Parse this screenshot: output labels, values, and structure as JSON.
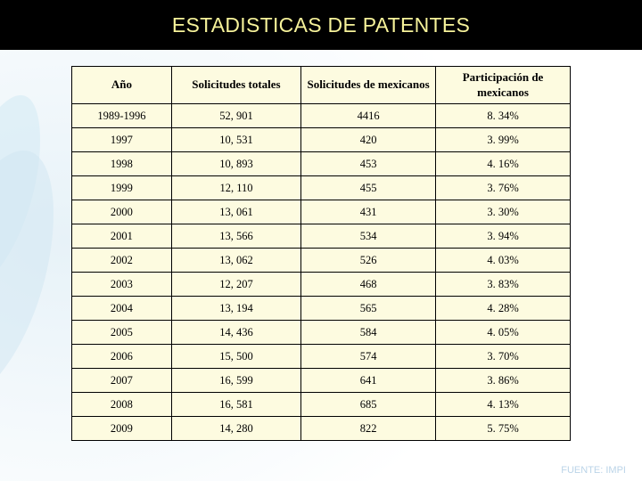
{
  "title": "ESTADISTICAS DE PATENTES",
  "footer": "FUENTE: IMPI",
  "table": {
    "columns": [
      "Año",
      "Solicitudes totales",
      "Solicitudes de mexicanos",
      "Participación de mexicanos"
    ],
    "col_widths_pct": [
      20,
      26,
      27,
      27
    ],
    "rows": [
      [
        "1989-1996",
        "52, 901",
        "4416",
        "8. 34%"
      ],
      [
        "1997",
        "10, 531",
        "420",
        "3. 99%"
      ],
      [
        "1998",
        "10, 893",
        "453",
        "4. 16%"
      ],
      [
        "1999",
        "12, 110",
        "455",
        "3. 76%"
      ],
      [
        "2000",
        "13, 061",
        "431",
        "3. 30%"
      ],
      [
        "2001",
        "13, 566",
        "534",
        "3. 94%"
      ],
      [
        "2002",
        "13, 062",
        "526",
        "4. 03%"
      ],
      [
        "2003",
        "12, 207",
        "468",
        "3. 83%"
      ],
      [
        "2004",
        "13, 194",
        "565",
        "4. 28%"
      ],
      [
        "2005",
        "14, 436",
        "584",
        "4. 05%"
      ],
      [
        "2006",
        "15, 500",
        "574",
        "3. 70%"
      ],
      [
        "2007",
        "16, 599",
        "641",
        "3. 86%"
      ],
      [
        "2008",
        "16, 581",
        "685",
        "4. 13%"
      ],
      [
        "2009",
        "14, 280",
        "822",
        "5. 75%"
      ]
    ]
  },
  "style": {
    "slide_bg": "#ffffff",
    "wave_color": "#cfe6f2",
    "titlebar_bg": "#000000",
    "title_color": "#f6f29a",
    "title_fontsize_pt": 18,
    "table_bg": "#fdfbe0",
    "border_color": "#000000",
    "header_fontsize_pt": 10,
    "cell_fontsize_pt": 10,
    "font_family": "Times New Roman"
  }
}
